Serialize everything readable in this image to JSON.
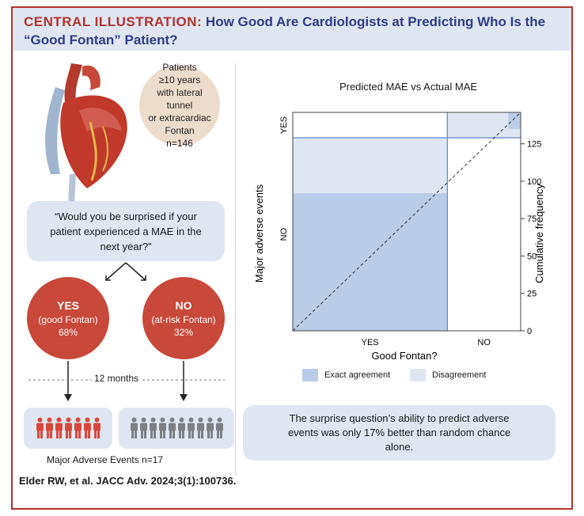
{
  "header": {
    "lead": "CENTRAL ILLUSTRATION:",
    "title": "How Good Are Cardiologists at Predicting Who Is the “Good Fontan” Patient?"
  },
  "patients": {
    "lines": [
      "Patients",
      "≥10 years",
      "with lateral tunnel",
      "or extracardiac",
      "Fontan",
      "n=146"
    ]
  },
  "question": "“Would you be surprised if your patient experienced a MAE in the next year?”",
  "groups": [
    {
      "label": "YES",
      "sub": "(good Fontan)",
      "pct": "68%",
      "color": "#c8483a"
    },
    {
      "label": "NO",
      "sub": "(at-risk Fontan)",
      "pct": "32%",
      "color": "#c8483a"
    }
  ],
  "timeline": "12 months",
  "events": {
    "label": "Major Adverse Events n=17",
    "red_count": 7,
    "gray_count": 10,
    "red_color": "#d9473c",
    "gray_color": "#7d7f83"
  },
  "citation": "Elder RW, et al. JACC Adv. 2024;3(1):100736.",
  "chart_data": {
    "type": "mosaic",
    "title": "Predicted MAE vs Actual MAE",
    "xlabel": "Good Fontan?",
    "ylabel_left": "Major adverse events",
    "ylabel_right": "Cumulative frequency",
    "x_categories": [
      "YES",
      "NO"
    ],
    "y_categories": [
      "YES",
      "NO"
    ],
    "yticks_right": [
      0,
      25,
      50,
      75,
      100,
      125
    ],
    "y_range": [
      0,
      146
    ],
    "x_range": [
      0,
      146
    ],
    "cells": [
      {
        "x0": 0,
        "x1": 99,
        "y0": 0,
        "y1": 92,
        "kind": "exact"
      },
      {
        "x0": 0,
        "x1": 99,
        "y0": 92,
        "y1": 129,
        "kind": "disagree"
      },
      {
        "x0": 0,
        "x1": 99,
        "y0": 129,
        "y1": 146,
        "kind": "white"
      },
      {
        "x0": 99,
        "x1": 146,
        "y0": 0,
        "y1": 129,
        "kind": "white"
      },
      {
        "x0": 99,
        "x1": 146,
        "y0": 129,
        "y1": 146,
        "kind": "disagree"
      },
      {
        "x0": 0,
        "x1": 91,
        "y0": 0,
        "y1": 92,
        "kind": "exact"
      },
      {
        "x0": 138,
        "x1": 146,
        "y0": 135,
        "y1": 146,
        "kind": "exact"
      }
    ],
    "legend": [
      {
        "label": "Exact agreement",
        "color": "#b9cce8"
      },
      {
        "label": "Disagreement",
        "color": "#dfe6f1"
      }
    ]
  },
  "conclusion": "The surprise question’s ability to predict adverse events was only 17% better than random chance alone."
}
